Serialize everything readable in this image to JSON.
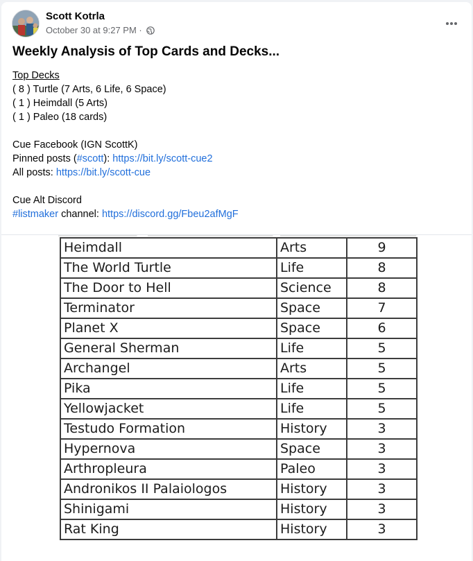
{
  "post": {
    "author": "Scott Kotrla",
    "timestamp": "October 30 at 9:27 PM",
    "separator": "·",
    "title": "Weekly Analysis of Top Cards and Decks...",
    "top_decks_heading": "Top Decks",
    "top_decks": [
      "( 8 ) Turtle (7 Arts, 6 Life, 6 Space)",
      "( 1 ) Heimdall (5 Arts)",
      "( 1 ) Paleo (18 cards)"
    ],
    "facebook_line": "Cue Facebook (IGN ScottK)",
    "pinned_prefix": "Pinned posts (",
    "pinned_hashtag": "#scott",
    "pinned_mid": "): ",
    "pinned_link": "https://bit.ly/scott-cue2",
    "all_prefix": "All posts: ",
    "all_link": "https://bit.ly/scott-cue",
    "discord_line": "Cue Alt Discord",
    "listmaker_hashtag": "#listmaker",
    "channel_text": " channel: ",
    "discord_link": "https://discord.gg/Fbeu2afMgF"
  },
  "icons": {
    "more": "more-horizontal-icon",
    "privacy": "globe-icon"
  },
  "colors": {
    "link": "#216fdb",
    "meta": "#65676b",
    "background": "#f0f2f5"
  },
  "table": {
    "rows": [
      {
        "name": "Heimdall",
        "type": "Arts",
        "count": "9"
      },
      {
        "name": "The World Turtle",
        "type": "Life",
        "count": "8"
      },
      {
        "name": "The Door to Hell",
        "type": "Science",
        "count": "8"
      },
      {
        "name": "Terminator",
        "type": "Space",
        "count": "7"
      },
      {
        "name": "Planet X",
        "type": "Space",
        "count": "6"
      },
      {
        "name": "General Sherman",
        "type": "Life",
        "count": "5"
      },
      {
        "name": "Archangel",
        "type": "Arts",
        "count": "5"
      },
      {
        "name": "Pika",
        "type": "Life",
        "count": "5"
      },
      {
        "name": "Yellowjacket",
        "type": "Life",
        "count": "5"
      },
      {
        "name": "Testudo Formation",
        "type": "History",
        "count": "3"
      },
      {
        "name": "Hypernova",
        "type": "Space",
        "count": "3"
      },
      {
        "name": "Arthropleura",
        "type": "Paleo",
        "count": "3"
      },
      {
        "name": "Andronikos II Palaiologos",
        "type": "History",
        "count": "3"
      },
      {
        "name": "Shinigami",
        "type": "History",
        "count": "3"
      },
      {
        "name": "Rat King",
        "type": "History",
        "count": "3"
      }
    ]
  }
}
